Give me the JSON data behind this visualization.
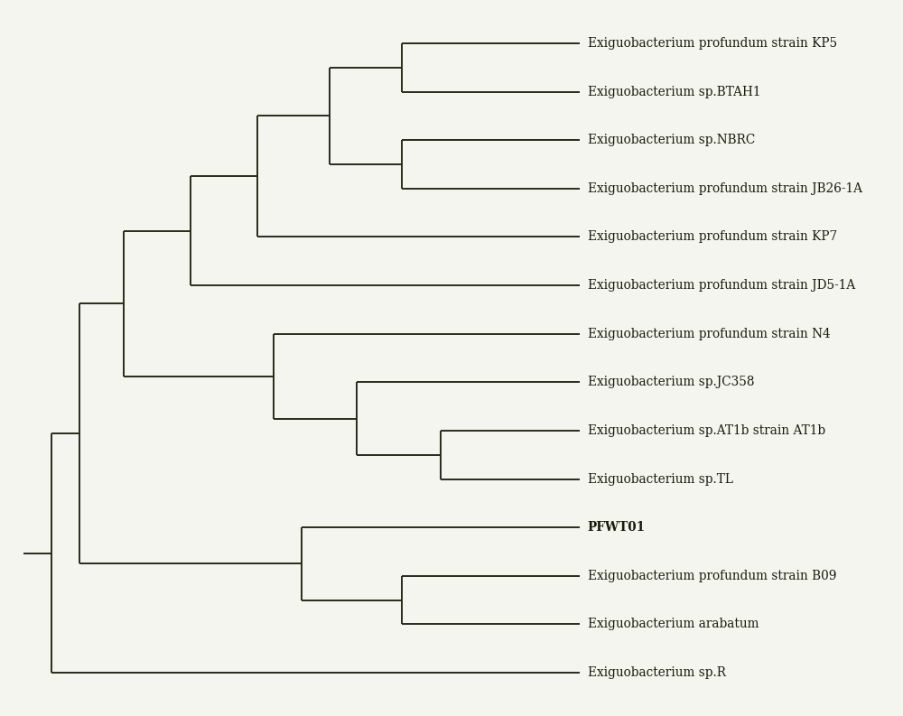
{
  "taxa": [
    "Exiguobacterium profundum strain KP5",
    "Exiguobacterium sp.BTAH1",
    "Exiguobacterium sp.NBRC",
    "Exiguobacterium profundum strain JB26-1A",
    "Exiguobacterium profundum strain KP7",
    "Exiguobacterium profundum strain JD5-1A",
    "Exiguobacterium profundum strain N4",
    "Exiguobacterium sp.JC358",
    "Exiguobacterium sp.AT1b strain AT1b",
    "Exiguobacterium sp.TL",
    "PFWT01",
    "Exiguobacterium profundum strain B09",
    "Exiguobacterium arabatum",
    "Exiguobacterium sp.R"
  ],
  "bold_taxa": [
    "PFWT01"
  ],
  "line_color": "#2a2a1a",
  "line_width": 1.4,
  "bg_color": "#f5f5f0",
  "font_size": 9.8,
  "fig_width": 10.0,
  "fig_height": 7.93
}
